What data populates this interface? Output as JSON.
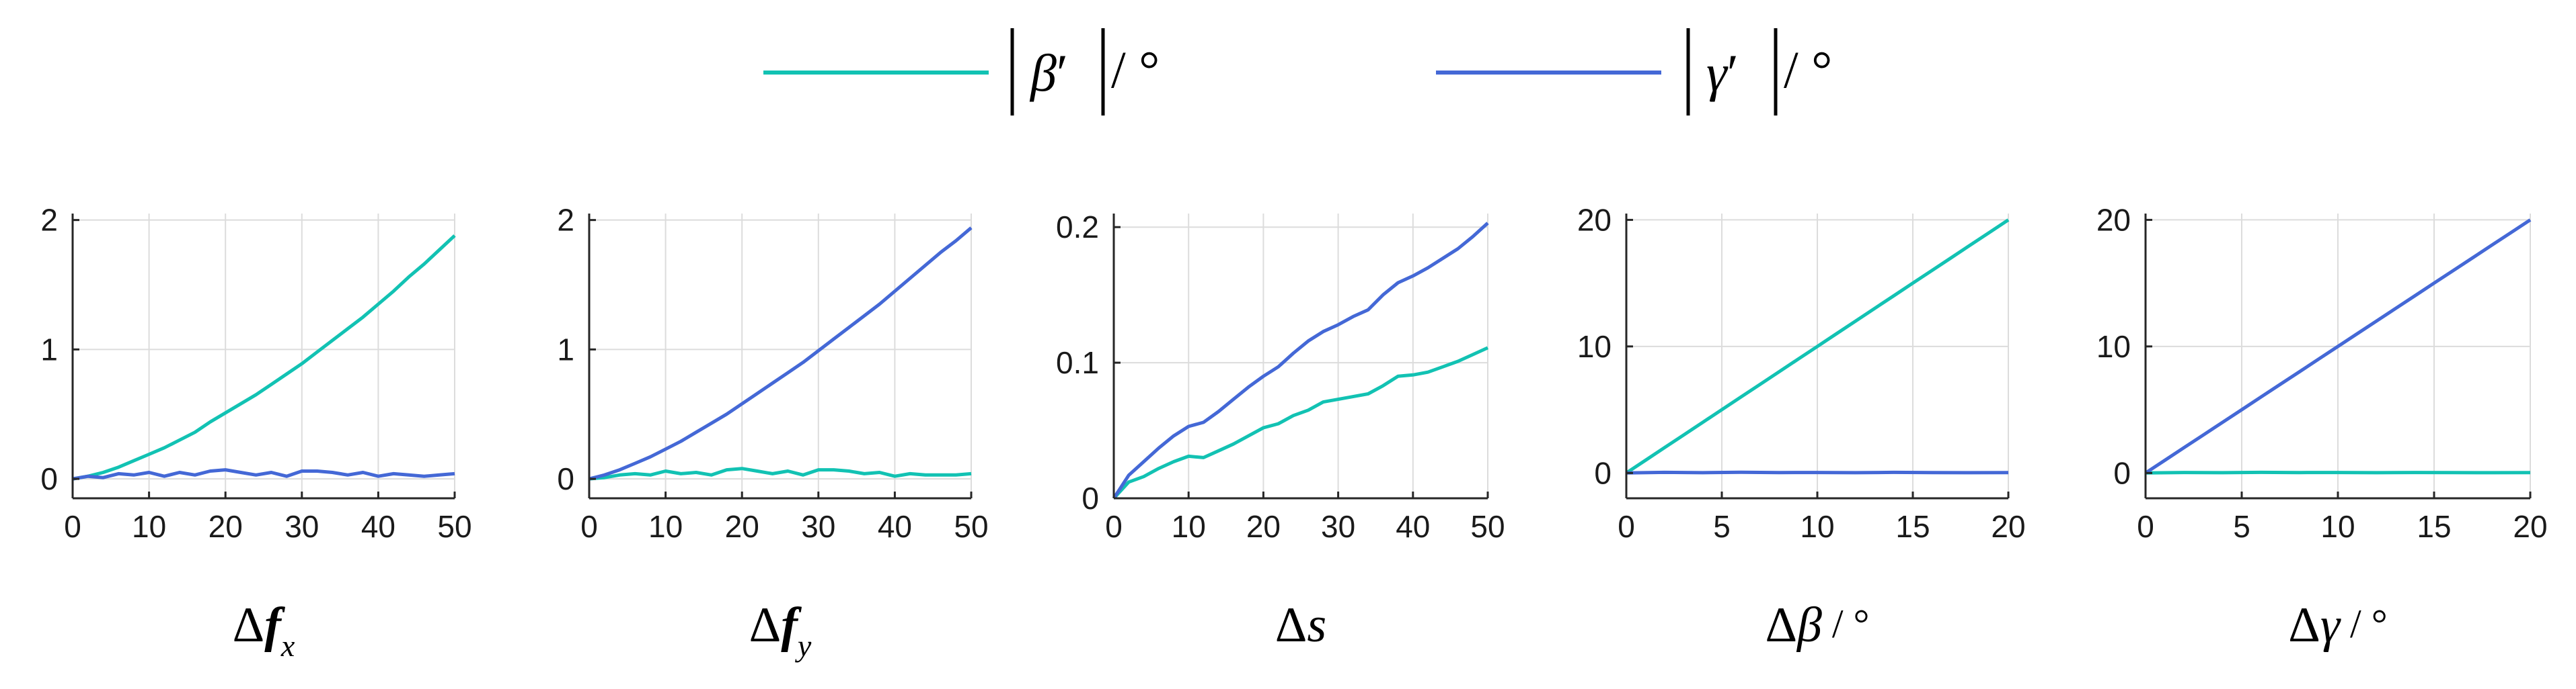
{
  "colors": {
    "beta": "#12c2b3",
    "gamma": "#4468d6"
  },
  "legend": {
    "items": [
      {
        "key": "beta",
        "symbol": "β",
        "prime": "′",
        "unit": "/ °",
        "color": "#12c2b3"
      },
      {
        "key": "gamma",
        "symbol": "γ",
        "prime": "′",
        "unit": "/ °",
        "color": "#4468d6"
      }
    ]
  },
  "chart_data": [
    {
      "type": "line",
      "xlabel_prefix": "Δ",
      "xlabel_var": "f",
      "xlabel_sub": "x",
      "xlabel_unit": "",
      "xlim": [
        0,
        50
      ],
      "ylim": [
        -0.15,
        2.05
      ],
      "xticks": [
        "0",
        "10",
        "20",
        "30",
        "40",
        "50"
      ],
      "xtick_values": [
        0,
        10,
        20,
        30,
        40,
        50
      ],
      "yticks": [
        "0",
        "1",
        "2"
      ],
      "ytick_values": [
        0,
        1,
        2
      ],
      "grid": true,
      "series": [
        {
          "key": "beta",
          "x": [
            0,
            2,
            4,
            6,
            8,
            10,
            12,
            14,
            16,
            18,
            20,
            22,
            24,
            26,
            28,
            30,
            32,
            34,
            36,
            38,
            40,
            42,
            44,
            46,
            48,
            50
          ],
          "y": [
            0,
            0.02,
            0.05,
            0.09,
            0.14,
            0.19,
            0.24,
            0.3,
            0.36,
            0.44,
            0.51,
            0.58,
            0.65,
            0.73,
            0.81,
            0.89,
            0.98,
            1.07,
            1.16,
            1.25,
            1.35,
            1.45,
            1.56,
            1.66,
            1.77,
            1.88
          ]
        },
        {
          "key": "gamma",
          "x": [
            0,
            2,
            4,
            6,
            8,
            10,
            12,
            14,
            16,
            18,
            20,
            22,
            24,
            26,
            28,
            30,
            32,
            34,
            36,
            38,
            40,
            42,
            44,
            46,
            48,
            50
          ],
          "y": [
            0,
            0.02,
            0.01,
            0.04,
            0.03,
            0.05,
            0.02,
            0.05,
            0.03,
            0.06,
            0.07,
            0.05,
            0.03,
            0.05,
            0.02,
            0.06,
            0.06,
            0.05,
            0.03,
            0.05,
            0.02,
            0.04,
            0.03,
            0.02,
            0.03,
            0.04
          ]
        }
      ]
    },
    {
      "type": "line",
      "xlabel_prefix": "Δ",
      "xlabel_var": "f",
      "xlabel_sub": "y",
      "xlabel_unit": "",
      "xlim": [
        0,
        50
      ],
      "ylim": [
        -0.15,
        2.05
      ],
      "xticks": [
        "0",
        "10",
        "20",
        "30",
        "40",
        "50"
      ],
      "xtick_values": [
        0,
        10,
        20,
        30,
        40,
        50
      ],
      "yticks": [
        "0",
        "1",
        "2"
      ],
      "ytick_values": [
        0,
        1,
        2
      ],
      "grid": true,
      "series": [
        {
          "key": "beta",
          "x": [
            0,
            2,
            4,
            6,
            8,
            10,
            12,
            14,
            16,
            18,
            20,
            22,
            24,
            26,
            28,
            30,
            32,
            34,
            36,
            38,
            40,
            42,
            44,
            46,
            48,
            50
          ],
          "y": [
            0,
            0.01,
            0.03,
            0.04,
            0.03,
            0.06,
            0.04,
            0.05,
            0.03,
            0.07,
            0.08,
            0.06,
            0.04,
            0.06,
            0.03,
            0.07,
            0.07,
            0.06,
            0.04,
            0.05,
            0.02,
            0.04,
            0.03,
            0.03,
            0.03,
            0.04
          ]
        },
        {
          "key": "gamma",
          "x": [
            0,
            2,
            4,
            6,
            8,
            10,
            12,
            14,
            16,
            18,
            20,
            22,
            24,
            26,
            28,
            30,
            32,
            34,
            36,
            38,
            40,
            42,
            44,
            46,
            48,
            50
          ],
          "y": [
            0,
            0.03,
            0.07,
            0.12,
            0.17,
            0.23,
            0.29,
            0.36,
            0.43,
            0.5,
            0.58,
            0.66,
            0.74,
            0.82,
            0.9,
            0.99,
            1.08,
            1.17,
            1.26,
            1.35,
            1.45,
            1.55,
            1.65,
            1.75,
            1.84,
            1.94
          ]
        }
      ]
    },
    {
      "type": "line",
      "xlabel_prefix": "Δ",
      "xlabel_var": "s",
      "xlabel_sub": "",
      "xlabel_unit": "",
      "xlim": [
        0,
        50
      ],
      "ylim": [
        0,
        0.21
      ],
      "xticks": [
        "0",
        "10",
        "20",
        "30",
        "40",
        "50"
      ],
      "xtick_values": [
        0,
        10,
        20,
        30,
        40,
        50
      ],
      "yticks": [
        "0",
        "0.1",
        "0.2"
      ],
      "ytick_values": [
        0,
        0.1,
        0.2
      ],
      "grid": true,
      "series": [
        {
          "key": "beta",
          "x": [
            0,
            2,
            4,
            6,
            8,
            10,
            12,
            14,
            16,
            18,
            20,
            22,
            24,
            26,
            28,
            30,
            32,
            34,
            36,
            38,
            40,
            42,
            44,
            46,
            48,
            50
          ],
          "y": [
            0,
            0.012,
            0.016,
            0.022,
            0.027,
            0.031,
            0.03,
            0.035,
            0.04,
            0.046,
            0.052,
            0.055,
            0.061,
            0.065,
            0.071,
            0.073,
            0.075,
            0.077,
            0.083,
            0.09,
            0.091,
            0.093,
            0.097,
            0.101,
            0.106,
            0.111
          ]
        },
        {
          "key": "gamma",
          "x": [
            0,
            2,
            4,
            6,
            8,
            10,
            12,
            14,
            16,
            18,
            20,
            22,
            24,
            26,
            28,
            30,
            32,
            34,
            36,
            38,
            40,
            42,
            44,
            46,
            48,
            50
          ],
          "y": [
            0,
            0.017,
            0.027,
            0.037,
            0.046,
            0.053,
            0.056,
            0.064,
            0.073,
            0.082,
            0.09,
            0.097,
            0.107,
            0.116,
            0.123,
            0.128,
            0.134,
            0.139,
            0.15,
            0.159,
            0.164,
            0.17,
            0.177,
            0.184,
            0.193,
            0.203
          ]
        }
      ]
    },
    {
      "type": "line",
      "xlabel_prefix": "Δ",
      "xlabel_var": "β",
      "xlabel_sub": "",
      "xlabel_unit": " / °",
      "xlim": [
        0,
        20
      ],
      "ylim": [
        -2,
        20.5
      ],
      "xticks": [
        "0",
        "5",
        "10",
        "15",
        "20"
      ],
      "xtick_values": [
        0,
        5,
        10,
        15,
        20
      ],
      "yticks": [
        "0",
        "10",
        "20"
      ],
      "ytick_values": [
        0,
        10,
        20
      ],
      "grid": true,
      "series": [
        {
          "key": "beta",
          "x": [
            0,
            1,
            2,
            3,
            4,
            5,
            6,
            7,
            8,
            9,
            10,
            11,
            12,
            13,
            14,
            15,
            16,
            17,
            18,
            19,
            20
          ],
          "y": [
            0,
            1,
            2,
            3,
            4,
            5,
            6,
            7,
            8,
            9,
            10,
            11,
            12,
            13,
            14,
            15,
            16,
            17,
            18,
            19,
            20
          ]
        },
        {
          "key": "gamma",
          "x": [
            0,
            2,
            4,
            6,
            8,
            10,
            12,
            14,
            16,
            18,
            20
          ],
          "y": [
            0,
            0.05,
            0.02,
            0.06,
            0.03,
            0.04,
            0.02,
            0.05,
            0.03,
            0.02,
            0.03
          ]
        }
      ]
    },
    {
      "type": "line",
      "xlabel_prefix": "Δ",
      "xlabel_var": "γ",
      "xlabel_sub": "",
      "xlabel_unit": " / °",
      "xlim": [
        0,
        20
      ],
      "ylim": [
        -2,
        20.5
      ],
      "xticks": [
        "0",
        "5",
        "10",
        "15",
        "20"
      ],
      "xtick_values": [
        0,
        5,
        10,
        15,
        20
      ],
      "yticks": [
        "0",
        "10",
        "20"
      ],
      "ytick_values": [
        0,
        10,
        20
      ],
      "grid": true,
      "series": [
        {
          "key": "beta",
          "x": [
            0,
            2,
            4,
            6,
            8,
            10,
            12,
            14,
            16,
            18,
            20
          ],
          "y": [
            0,
            0.04,
            0.02,
            0.05,
            0.03,
            0.04,
            0.02,
            0.04,
            0.03,
            0.02,
            0.03
          ]
        },
        {
          "key": "gamma",
          "x": [
            0,
            1,
            2,
            3,
            4,
            5,
            6,
            7,
            8,
            9,
            10,
            11,
            12,
            13,
            14,
            15,
            16,
            17,
            18,
            19,
            20
          ],
          "y": [
            0,
            1,
            2,
            3,
            4,
            5,
            6,
            7,
            8,
            9,
            10,
            11,
            12,
            13,
            14,
            15,
            16,
            17,
            18,
            19,
            20
          ]
        }
      ]
    }
  ]
}
